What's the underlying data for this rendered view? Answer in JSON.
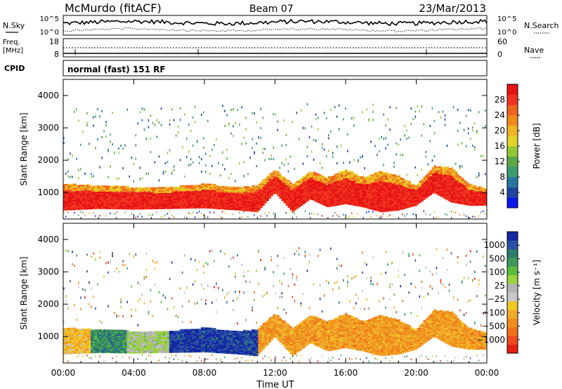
{
  "header": {
    "station": "McMurdo (fitACF)",
    "beam": "Beam 07",
    "date": "23/Mar/2013"
  },
  "noise_panel": {
    "left_label": "N.Sky",
    "left_ticks": [
      "10^5",
      "10^0"
    ],
    "right_label": "N.Search",
    "right_ticks": [
      "10^5",
      "10^0"
    ]
  },
  "freq_panel": {
    "left_label_1": "Freq.",
    "left_label_2": "[MHz]",
    "left_ticks": [
      "18",
      "8"
    ],
    "right_label": "Nave",
    "right_ticks": [
      "60",
      "0"
    ]
  },
  "cpid_panel": {
    "label": "CPID",
    "value": "normal (fast) 151 RF"
  },
  "chart_data": [
    {
      "type": "heatmap",
      "title": "",
      "xlabel": "Time UT",
      "ylabel": "Slant Range [km]",
      "x_ticks": [
        "00:00",
        "04:00",
        "08:00",
        "12:00",
        "16:00",
        "20:00",
        "00:00"
      ],
      "y_ticks": [
        1000,
        2000,
        3000,
        4000
      ],
      "xlim_hours": [
        0,
        24
      ],
      "ylim_km": [
        180,
        4500
      ],
      "colorbar": {
        "label": "Power [dB]",
        "ticks": [
          "4",
          "8",
          "12",
          "16",
          "20",
          "24",
          "28"
        ],
        "colors": [
          "#0a14f0",
          "#1e46a0",
          "#2878a0",
          "#3c9c6e",
          "#5aaa46",
          "#96c832",
          "#e6d228",
          "#f0b424",
          "#f08c1e",
          "#f0641e",
          "#f0321e",
          "#e61414"
        ]
      },
      "main_band": [
        {
          "t": 0,
          "lo": 450,
          "hi": 1250
        },
        {
          "t": 2,
          "lo": 500,
          "hi": 1200
        },
        {
          "t": 4,
          "lo": 480,
          "hi": 1150
        },
        {
          "t": 6,
          "lo": 500,
          "hi": 1150
        },
        {
          "t": 8,
          "lo": 520,
          "hi": 1250
        },
        {
          "t": 10,
          "lo": 450,
          "hi": 1150
        },
        {
          "t": 11,
          "lo": 400,
          "hi": 1200
        },
        {
          "t": 12,
          "lo": 1000,
          "hi": 1700
        },
        {
          "t": 13,
          "lo": 400,
          "hi": 1250
        },
        {
          "t": 14,
          "lo": 800,
          "hi": 1650
        },
        {
          "t": 15,
          "lo": 550,
          "hi": 1450
        },
        {
          "t": 16,
          "lo": 650,
          "hi": 1700
        },
        {
          "t": 17,
          "lo": 550,
          "hi": 1450
        },
        {
          "t": 18,
          "lo": 400,
          "hi": 1650
        },
        {
          "t": 19,
          "lo": 450,
          "hi": 1500
        },
        {
          "t": 20,
          "lo": 600,
          "hi": 1200
        },
        {
          "t": 21,
          "lo": 1000,
          "hi": 1800
        },
        {
          "t": 22,
          "lo": 700,
          "hi": 1750
        },
        {
          "t": 23,
          "lo": 600,
          "hi": 1250
        },
        {
          "t": 24,
          "lo": 600,
          "hi": 1100
        }
      ]
    },
    {
      "type": "heatmap",
      "title": "",
      "xlabel": "Time UT",
      "ylabel": "Slant Range [km]",
      "x_ticks": [
        "00:00",
        "04:00",
        "08:00",
        "12:00",
        "16:00",
        "20:00",
        "00:00"
      ],
      "y_ticks": [
        1000,
        2000,
        3000,
        4000
      ],
      "xlim_hours": [
        0,
        24
      ],
      "ylim_km": [
        180,
        4500
      ],
      "colorbar": {
        "label": "Velocity [m s⁻¹]",
        "ticks": [
          "1000",
          "500",
          "100",
          "25",
          "−25",
          "−100",
          "−500",
          "−1000"
        ],
        "colors": [
          "#1428a0",
          "#2a50a8",
          "#2e7c6c",
          "#3e9a5a",
          "#5abe3c",
          "#9cd23c",
          "#b4b4b4",
          "#c8c8c8",
          "#f0c828",
          "#f0aa28",
          "#f08c1e",
          "#f06e1e",
          "#f04a1e",
          "#e61e14"
        ]
      },
      "velocity_segments": [
        {
          "t0": 0,
          "t1": 1.5,
          "vel": "-100"
        },
        {
          "t0": 1.5,
          "t1": 3.5,
          "vel": "100"
        },
        {
          "t0": 3.5,
          "t1": 6,
          "vel": "25"
        },
        {
          "t0": 6,
          "t1": 11,
          "vel": "500"
        },
        {
          "t0": 11,
          "t1": 24,
          "vel": "-500"
        }
      ]
    }
  ]
}
